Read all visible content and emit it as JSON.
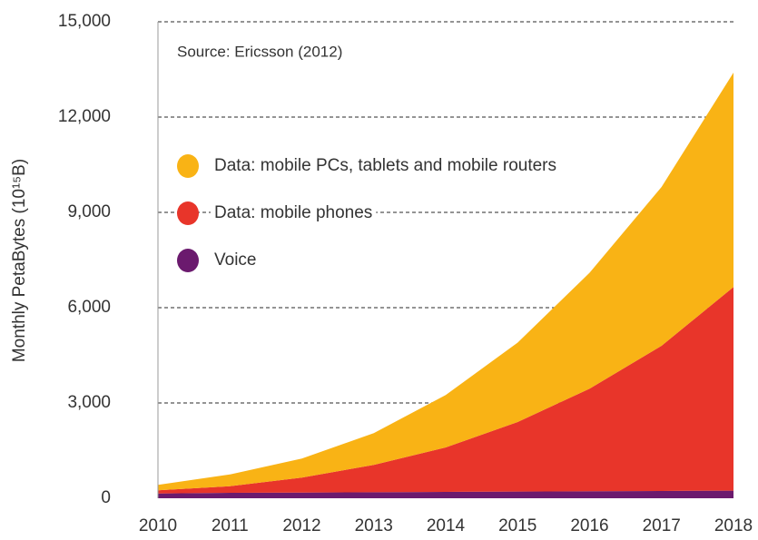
{
  "chart_data": {
    "type": "stacked_area",
    "y_label": "Monthly PetaBytes (10¹⁵B)",
    "annotation": "Source: Ericsson (2012)",
    "categories": [
      "2010",
      "2011",
      "2012",
      "2013",
      "2014",
      "2015",
      "2016",
      "2017",
      "2018"
    ],
    "series": [
      {
        "name": "Data: mobile PCs, tablets and mobile routers",
        "color": "#f9b315",
        "values": [
          170,
          370,
          600,
          1000,
          1650,
          2500,
          3650,
          5000,
          6750
        ]
      },
      {
        "name": "Data: mobile phones",
        "color": "#e8352a",
        "values": [
          100,
          210,
          470,
          860,
          1400,
          2190,
          3230,
          4570,
          6410
        ]
      },
      {
        "name": "Voice",
        "color": "#6b1a6e",
        "values": [
          150,
          170,
          180,
          190,
          200,
          210,
          220,
          230,
          240
        ]
      }
    ],
    "ylim": [
      0,
      15000
    ],
    "yticks": [
      0,
      {
        "value": 3000,
        "label": "3,000"
      },
      {
        "value": 6000,
        "label": "6,000"
      },
      {
        "value": 9000,
        "label": "9,000"
      },
      {
        "value": 12000,
        "label": "12,000"
      },
      {
        "value": 15000,
        "label": "15,000"
      }
    ],
    "grid": true
  }
}
